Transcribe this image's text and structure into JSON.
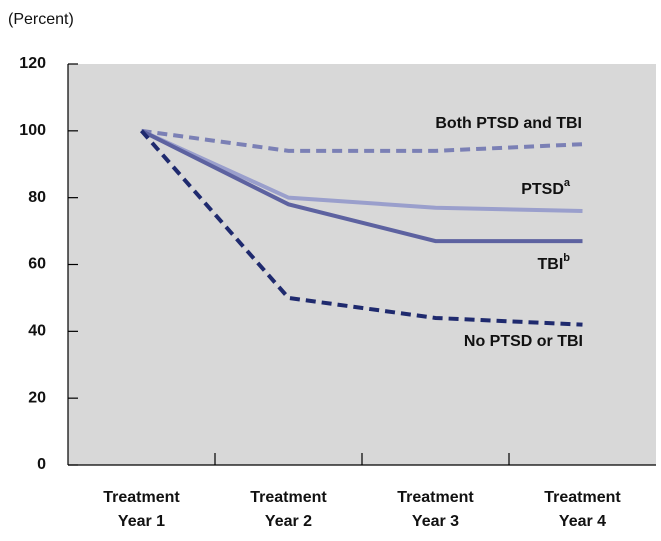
{
  "chart_data": {
    "type": "line",
    "y_label": "(Percent)",
    "categories": [
      [
        "Treatment",
        "Year 1"
      ],
      [
        "Treatment",
        "Year 2"
      ],
      [
        "Treatment",
        "Year 3"
      ],
      [
        "Treatment",
        "Year 4"
      ]
    ],
    "series": [
      {
        "name": "Both PTSD and TBI",
        "color": "#7b80b5",
        "dashed": true,
        "values": [
          100,
          94,
          94,
          96
        ]
      },
      {
        "name": "PTSD",
        "note": "a",
        "color": "#9a9fcc",
        "dashed": false,
        "values": [
          100,
          80,
          77,
          76
        ]
      },
      {
        "name": "TBI",
        "note": "b",
        "color": "#5d62a0",
        "dashed": false,
        "values": [
          100,
          78,
          67,
          67
        ]
      },
      {
        "name": "No PTSD or TBI",
        "color": "#1f2a6e",
        "dashed": true,
        "values": [
          100,
          50,
          44,
          42
        ]
      }
    ],
    "ylim": [
      0,
      120
    ],
    "yticks": [
      0,
      20,
      40,
      60,
      80,
      100,
      120
    ]
  }
}
